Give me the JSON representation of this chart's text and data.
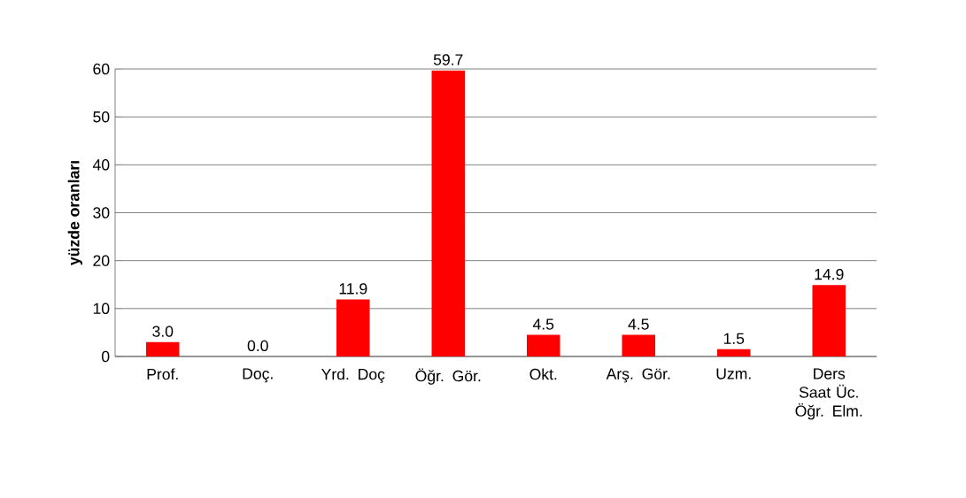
{
  "chart_data": {
    "type": "bar",
    "ylabel": "yüzde oranları",
    "categories": [
      "Prof.",
      "Doç.",
      "Yrd. Doç",
      "Öğr. Gör.",
      "Okt.",
      "Arş. Gör.",
      "Uzm.",
      "Ders Saat Üc. Öğr. Elm."
    ],
    "values": [
      3.0,
      0.0,
      11.9,
      59.7,
      4.5,
      4.5,
      1.5,
      14.9
    ],
    "value_labels": [
      "3.0",
      "0.0",
      "11.9",
      "59.7",
      "4.5",
      "4.5",
      "1.5",
      "14.9"
    ],
    "color": "#ff0000",
    "ylim": [
      0,
      60
    ],
    "yticks": [
      0,
      10,
      20,
      30,
      40,
      50,
      60
    ],
    "grid": "y"
  }
}
